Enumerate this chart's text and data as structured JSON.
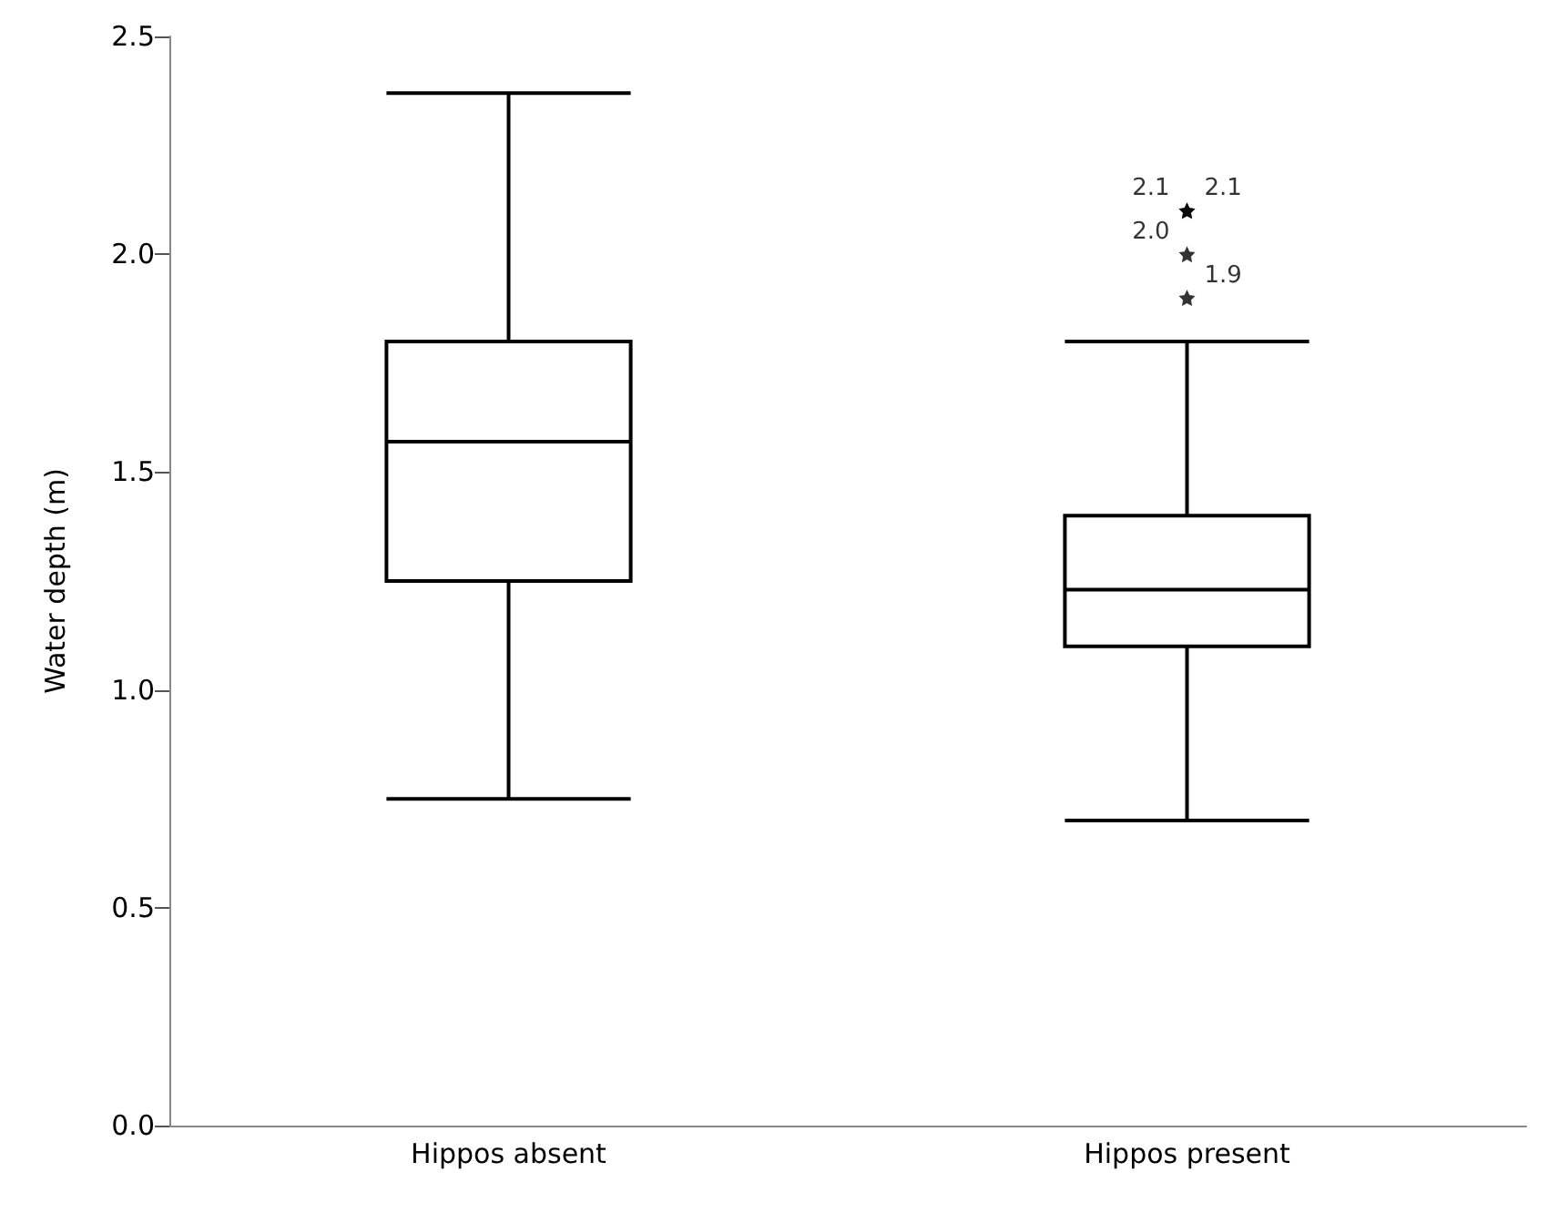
{
  "chart_data": {
    "type": "box",
    "ylabel": "Water depth (m)",
    "categories": [
      "Hippos absent",
      "Hippos present"
    ],
    "boxes": [
      {
        "low": 0.75,
        "q1": 1.25,
        "median": 1.57,
        "q3": 1.8,
        "high": 2.37
      },
      {
        "low": 0.7,
        "q1": 1.1,
        "median": 1.23,
        "q3": 1.4,
        "high": 1.8
      }
    ],
    "series": [
      {
        "type": "scatter",
        "marker": "star",
        "color": "#000000",
        "x": [
          "Hippos present",
          "Hippos present",
          "Hippos present",
          "Hippos present"
        ],
        "values": [
          2.1,
          2.1,
          2.0,
          1.9
        ],
        "value_labels": [
          "2.1",
          "2.1",
          "2.0",
          "1.9"
        ]
      }
    ],
    "ylim": [
      0,
      2.5
    ],
    "yticks": [
      {
        "value": 0,
        "label": "0.0"
      },
      0.5,
      {
        "value": 1,
        "label": "1.0"
      },
      1.5,
      {
        "value": 2,
        "label": "2.0"
      },
      2.5
    ],
    "grid": false,
    "color": "#000000"
  }
}
